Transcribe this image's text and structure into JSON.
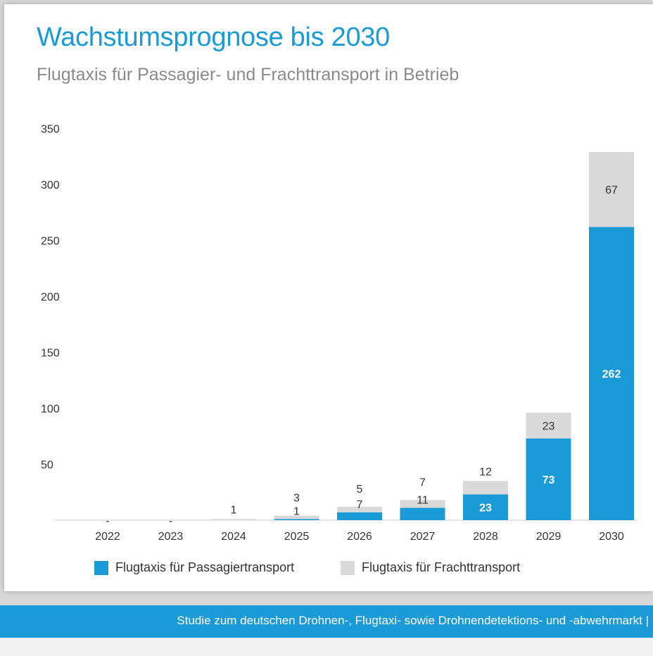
{
  "title": "Wachstumsprognose bis 2030",
  "subtitle": "Flugtaxis für Passagier- und Frachttransport in Betrieb",
  "footer": "Studie zum deutschen Drohnen-, Flugtaxi- sowie Drohnendetektions- und -abwehrmarkt |",
  "colors": {
    "passenger": "#1a9ad6",
    "freight": "#d9d9d9",
    "title": "#1a9ad6"
  },
  "chart_data": {
    "type": "bar",
    "stacked": true,
    "categories": [
      "2022",
      "2023",
      "2024",
      "2025",
      "2026",
      "2027",
      "2028",
      "2029",
      "2030"
    ],
    "yticks": [
      50,
      100,
      150,
      200,
      250,
      300,
      350
    ],
    "ylim": [
      0,
      350
    ],
    "series": [
      {
        "name": "Flugtaxis für Passagiertransport",
        "values": [
          0,
          0,
          0,
          1,
          7,
          11,
          23,
          73,
          262
        ],
        "labels": [
          "-",
          "-",
          "",
          "1",
          "7",
          "11",
          "23",
          "73",
          "262"
        ]
      },
      {
        "name": "Flugtaxis für Frachttransport",
        "values": [
          0,
          0,
          1,
          3,
          5,
          7,
          12,
          23,
          67
        ],
        "labels": [
          "",
          "",
          "1",
          "3",
          "5",
          "7",
          "12",
          "23",
          "67"
        ]
      }
    ],
    "legend_position": "bottom"
  }
}
